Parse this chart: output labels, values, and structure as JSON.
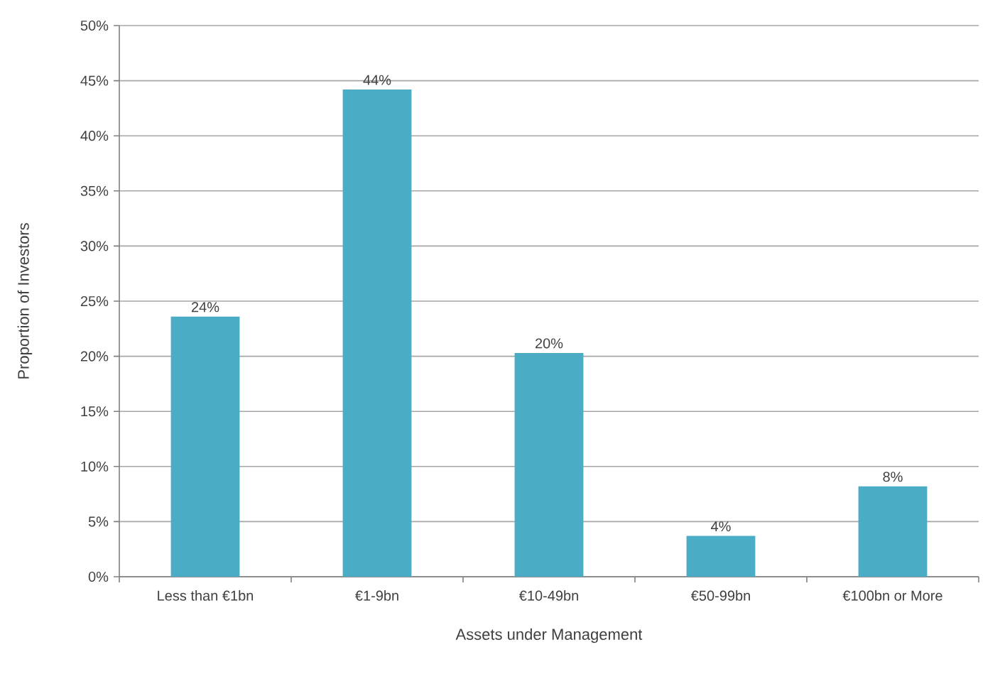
{
  "chart_data": {
    "type": "bar",
    "xlabel": "Assets under Management",
    "ylabel": "Proportion of Investors",
    "categories": [
      "Less than €1bn",
      "€1-9bn",
      "€10-49bn",
      "€50-99bn",
      "€100bn or More"
    ],
    "values": [
      23.6,
      44.2,
      20.3,
      3.7,
      8.2
    ],
    "color": "#4bacc6",
    "value_labels": [
      "24%",
      "44%",
      "20%",
      "4%",
      "8%"
    ],
    "ylim": [
      0,
      50
    ],
    "yticks": [
      {
        "value": 0,
        "label": "0%"
      },
      {
        "value": 5,
        "label": "5%"
      },
      {
        "value": 10,
        "label": "10%"
      },
      {
        "value": 15,
        "label": "15%"
      },
      {
        "value": 20,
        "label": "20%"
      },
      {
        "value": 25,
        "label": "25%"
      },
      {
        "value": 30,
        "label": "30%"
      },
      {
        "value": 35,
        "label": "35%"
      },
      {
        "value": 40,
        "label": "40%"
      },
      {
        "value": 45,
        "label": "45%"
      },
      {
        "value": 50,
        "label": "50%"
      }
    ],
    "grid": "y"
  }
}
